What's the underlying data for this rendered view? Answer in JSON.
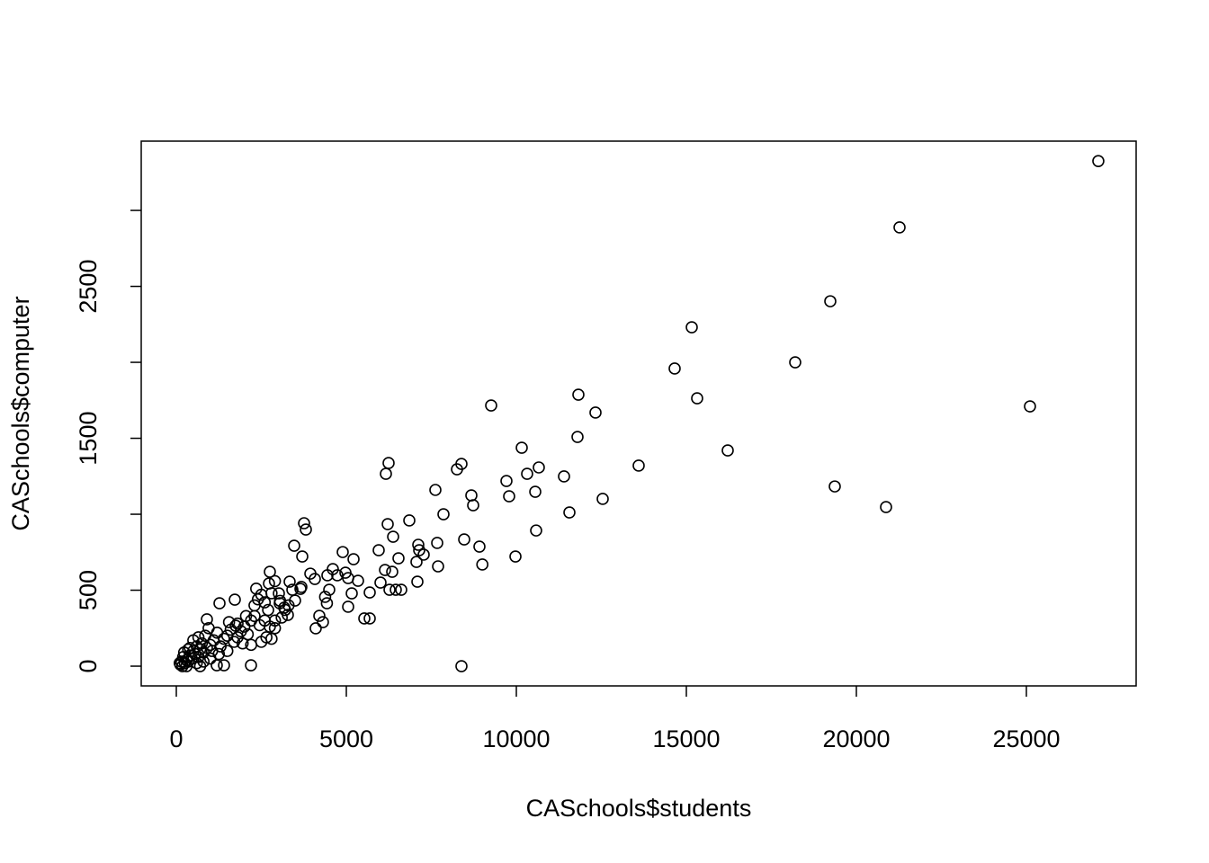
{
  "chart_data": {
    "type": "scatter",
    "xlabel": "CASchools$students",
    "ylabel": "CASchools$computer",
    "xlim": [
      -1032,
      28228
    ],
    "ylim": [
      -130,
      3456
    ],
    "xticks": [
      0,
      5000,
      10000,
      15000,
      20000,
      25000
    ],
    "yticks": [
      0,
      500,
      {
        "value": 1000,
        "label": null
      },
      1500,
      {
        "value": 2000,
        "label": null
      },
      2500,
      {
        "value": 3000,
        "label": null
      }
    ],
    "color": "#000000",
    "grid": false,
    "x": [
      27116,
      21270,
      19233,
      15159,
      14656,
      18201,
      25106,
      9259,
      11825,
      15317,
      12328,
      11799,
      16217,
      10159,
      13598,
      10661,
      10317,
      11402,
      8386,
      8254,
      6243,
      6164,
      9709,
      9788,
      10556,
      12540,
      19365,
      20873,
      7619,
      8677,
      8730,
      11561,
      10582,
      7857,
      6852,
      6217,
      3757,
      3810,
      6376,
      8466,
      7672,
      8915,
      9974,
      9000,
      7698,
      7116,
      7143,
      7275,
      7063,
      7090,
      5952,
      6534,
      3466,
      3704,
      4894,
      5212,
      3942,
      4074,
      4444,
      4603,
      4735,
      4974,
      5053,
      5344,
      5159,
      5688,
      6005,
      6138,
      6349,
      6270,
      6455,
      6614,
      2751,
      2725,
      3333,
      3413,
      3651,
      3492,
      3175,
      3280,
      3016,
      3042,
      3677,
      4376,
      4429,
      4497,
      4206,
      4100,
      4312,
      5053,
      5529,
      5688,
      8386,
      1270,
      1720,
      1746,
      2196,
      1402,
      1190,
      899,
      2500,
      2600,
      2800,
      2400,
      2300,
      2700,
      2900,
      3100,
      2900,
      2650,
      2500,
      2200,
      2000,
      1900,
      1800,
      1600,
      1500,
      1700,
      1400,
      1300,
      1200,
      1100,
      1000,
      950,
      900,
      850,
      800,
      750,
      700,
      650,
      600,
      550,
      500,
      450,
      400,
      350,
      300,
      250,
      200,
      150,
      120,
      100,
      180,
      300,
      600,
      700,
      1000,
      1250,
      2100,
      2300,
      1950,
      2450,
      3300,
      3050,
      2600,
      2800,
      1500,
      1800,
      400,
      500,
      650,
      1050,
      800,
      230,
      350,
      2200,
      2050,
      2750,
      3200,
      2900,
      2350,
      1550
    ],
    "y": [
      3325,
      2888,
      2402,
      2231,
      1959,
      2000,
      1710,
      1716,
      1787,
      1763,
      1669,
      1509,
      1420,
      1438,
      1320,
      1308,
      1266,
      1249,
      1331,
      1296,
      1337,
      1266,
      1219,
      1118,
      1148,
      1101,
      1183,
      1047,
      1160,
      1124,
      1059,
      1012,
      893,
      1000,
      959,
      935,
      941,
      899,
      852,
      834,
      811,
      787,
      722,
      669,
      657,
      799,
      763,
      734,
      686,
      556,
      763,
      710,
      793,
      722,
      751,
      704,
      609,
      574,
      598,
      639,
      598,
      615,
      580,
      562,
      479,
      485,
      550,
      633,
      621,
      503,
      503,
      503,
      621,
      544,
      556,
      503,
      509,
      432,
      385,
      337,
      479,
      414,
      521,
      456,
      414,
      503,
      331,
      249,
      290,
      391,
      314,
      314,
      0,
      414,
      438,
      266,
      6,
      6,
      6,
      308,
      470,
      420,
      480,
      440,
      400,
      370,
      300,
      320,
      250,
      190,
      160,
      300,
      260,
      230,
      280,
      240,
      200,
      160,
      180,
      130,
      220,
      170,
      140,
      250,
      120,
      200,
      90,
      150,
      110,
      60,
      130,
      80,
      100,
      50,
      70,
      30,
      40,
      20,
      60,
      30,
      10,
      20,
      0,
      0,
      20,
      0,
      50,
      80,
      210,
      330,
      150,
      270,
      400,
      430,
      300,
      180,
      100,
      190,
      120,
      170,
      190,
      100,
      30,
      90,
      110,
      140,
      330,
      260,
      370,
      560,
      510,
      290
    ]
  }
}
